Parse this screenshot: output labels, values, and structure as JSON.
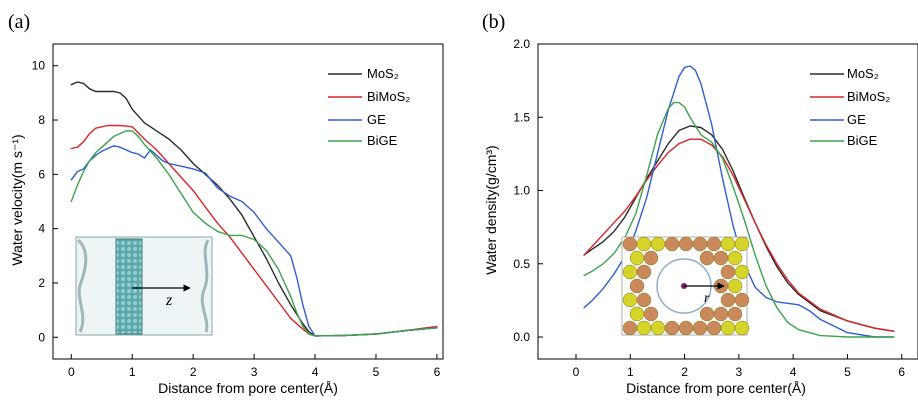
{
  "colors": {
    "MoS2": "#2b2b2b",
    "BiMoS2": "#d62728",
    "GE": "#2f5fd0",
    "BiGE": "#3ca34a"
  },
  "chart_data": [
    {
      "panel_label": "(a)",
      "type": "line",
      "xlabel": "Distance from pore center(Å)",
      "ylabel": "Water velocity(m s⁻¹)",
      "xlim": [
        -0.3,
        6.1
      ],
      "ylim": [
        -0.8,
        10.8
      ],
      "xticks": [
        0,
        1,
        2,
        3,
        4,
        5,
        6
      ],
      "yticks": [
        0,
        2,
        4,
        6,
        8,
        10
      ],
      "legend": "top-right",
      "series": [
        {
          "name": "MoS₂",
          "key": "MoS2",
          "x": [
            0.0,
            0.1,
            0.2,
            0.3,
            0.4,
            0.5,
            0.6,
            0.7,
            0.8,
            0.9,
            1.0,
            1.2,
            1.4,
            1.6,
            1.8,
            2.0,
            2.2,
            2.4,
            2.6,
            2.8,
            3.0,
            3.2,
            3.4,
            3.6,
            3.8,
            3.9,
            4.0,
            4.5,
            5.0,
            5.5,
            6.0
          ],
          "y": [
            9.3,
            9.4,
            9.35,
            9.15,
            9.05,
            9.05,
            9.05,
            9.05,
            9.0,
            8.8,
            8.4,
            7.9,
            7.6,
            7.3,
            6.9,
            6.4,
            6.0,
            5.6,
            5.1,
            4.5,
            3.7,
            2.9,
            2.0,
            1.2,
            0.5,
            0.2,
            0.05,
            0.07,
            0.12,
            0.25,
            0.35
          ]
        },
        {
          "name": "BiMoS₂",
          "key": "BiMoS2",
          "x": [
            0.0,
            0.1,
            0.2,
            0.3,
            0.4,
            0.5,
            0.6,
            0.8,
            1.0,
            1.2,
            1.4,
            1.6,
            1.8,
            2.0,
            2.2,
            2.4,
            2.6,
            2.8,
            3.0,
            3.2,
            3.4,
            3.6,
            3.8,
            3.9,
            4.0,
            4.5,
            5.0,
            5.5,
            6.0
          ],
          "y": [
            6.95,
            7.0,
            7.2,
            7.5,
            7.7,
            7.75,
            7.8,
            7.8,
            7.75,
            7.3,
            6.9,
            6.4,
            5.9,
            5.4,
            4.8,
            4.2,
            3.7,
            3.1,
            2.5,
            1.9,
            1.3,
            0.7,
            0.3,
            0.12,
            0.05,
            0.07,
            0.12,
            0.25,
            0.4
          ]
        },
        {
          "name": "GE",
          "key": "GE",
          "x": [
            0.0,
            0.1,
            0.2,
            0.3,
            0.4,
            0.5,
            0.6,
            0.7,
            0.8,
            0.9,
            1.0,
            1.1,
            1.2,
            1.3,
            1.4,
            1.5,
            1.6,
            1.8,
            2.0,
            2.2,
            2.4,
            2.6,
            2.8,
            3.0,
            3.2,
            3.4,
            3.6,
            3.7,
            3.8,
            3.9,
            4.0,
            4.5,
            5.0,
            5.5,
            6.0
          ],
          "y": [
            5.8,
            6.1,
            6.2,
            6.5,
            6.7,
            6.85,
            6.95,
            7.05,
            7.0,
            6.9,
            6.8,
            6.75,
            6.6,
            6.9,
            6.7,
            6.5,
            6.4,
            6.3,
            6.2,
            6.05,
            5.5,
            5.2,
            5.0,
            4.6,
            4.0,
            3.5,
            3.0,
            2.2,
            1.2,
            0.4,
            0.05,
            0.07,
            0.12,
            0.25,
            0.35
          ]
        },
        {
          "name": "BiGE",
          "key": "BiGE",
          "x": [
            0.0,
            0.1,
            0.2,
            0.3,
            0.4,
            0.5,
            0.6,
            0.7,
            0.8,
            0.9,
            1.0,
            1.1,
            1.2,
            1.4,
            1.6,
            1.8,
            2.0,
            2.2,
            2.4,
            2.6,
            2.8,
            3.0,
            3.2,
            3.4,
            3.5,
            3.6,
            3.7,
            3.8,
            3.9,
            4.0,
            4.5,
            5.0,
            5.5,
            6.0
          ],
          "y": [
            5.0,
            5.6,
            6.1,
            6.5,
            6.8,
            7.0,
            7.2,
            7.4,
            7.5,
            7.6,
            7.6,
            7.4,
            7.1,
            6.6,
            6.0,
            5.3,
            4.6,
            4.2,
            3.9,
            3.75,
            3.75,
            3.6,
            3.2,
            2.5,
            2.0,
            1.5,
            0.9,
            0.4,
            0.12,
            0.05,
            0.07,
            0.12,
            0.25,
            0.35
          ]
        }
      ],
      "inset": {
        "label": "z"
      }
    },
    {
      "panel_label": "(b)",
      "type": "line",
      "xlabel": "Distance from pore center(Å)",
      "ylabel": "Water density(g/cm³)",
      "xlim": [
        -0.7,
        6.3
      ],
      "ylim": [
        -0.15,
        2.0
      ],
      "xticks": [
        0,
        1,
        2,
        3,
        4,
        5,
        6
      ],
      "yticks": [
        0.0,
        0.5,
        1.0,
        1.5,
        2.0
      ],
      "ytick_labels": [
        "0.0",
        "0.5",
        "1.0",
        "1.5",
        "2.0"
      ],
      "legend": "top-right",
      "series": [
        {
          "name": "MoS₂",
          "key": "MoS2",
          "x": [
            0.15,
            0.3,
            0.5,
            0.7,
            0.9,
            1.1,
            1.3,
            1.5,
            1.7,
            1.9,
            2.1,
            2.3,
            2.5,
            2.7,
            2.9,
            3.1,
            3.3,
            3.5,
            3.7,
            3.9,
            4.1,
            4.5,
            5.0,
            5.5,
            5.85
          ],
          "y": [
            0.56,
            0.6,
            0.65,
            0.72,
            0.82,
            0.95,
            1.08,
            1.2,
            1.32,
            1.41,
            1.44,
            1.43,
            1.38,
            1.28,
            1.13,
            0.95,
            0.78,
            0.62,
            0.48,
            0.37,
            0.29,
            0.18,
            0.11,
            0.06,
            0.04
          ]
        },
        {
          "name": "BiMoS₂",
          "key": "BiMoS2",
          "x": [
            0.15,
            0.3,
            0.5,
            0.7,
            0.9,
            1.1,
            1.3,
            1.5,
            1.7,
            1.9,
            2.1,
            2.3,
            2.5,
            2.7,
            2.9,
            3.1,
            3.3,
            3.5,
            3.7,
            3.9,
            4.1,
            4.5,
            5.0,
            5.5,
            5.85
          ],
          "y": [
            0.56,
            0.62,
            0.7,
            0.78,
            0.86,
            0.96,
            1.07,
            1.17,
            1.26,
            1.32,
            1.35,
            1.35,
            1.31,
            1.23,
            1.1,
            0.94,
            0.78,
            0.63,
            0.5,
            0.39,
            0.3,
            0.19,
            0.11,
            0.06,
            0.04
          ]
        },
        {
          "name": "GE",
          "key": "GE",
          "x": [
            0.15,
            0.3,
            0.5,
            0.7,
            0.9,
            1.1,
            1.3,
            1.5,
            1.7,
            1.9,
            2.0,
            2.1,
            2.2,
            2.3,
            2.5,
            2.7,
            2.9,
            3.1,
            3.3,
            3.5,
            3.7,
            3.9,
            4.1,
            4.3,
            4.5,
            5.0,
            5.5,
            5.85
          ],
          "y": [
            0.2,
            0.25,
            0.33,
            0.43,
            0.55,
            0.72,
            0.95,
            1.25,
            1.55,
            1.78,
            1.84,
            1.85,
            1.82,
            1.73,
            1.45,
            1.08,
            0.75,
            0.5,
            0.34,
            0.27,
            0.24,
            0.23,
            0.22,
            0.18,
            0.12,
            0.03,
            0.0,
            0.0
          ]
        },
        {
          "name": "BiGE",
          "key": "BiGE",
          "x": [
            0.15,
            0.3,
            0.5,
            0.7,
            0.9,
            1.1,
            1.3,
            1.5,
            1.7,
            1.8,
            1.9,
            2.0,
            2.1,
            2.3,
            2.5,
            2.7,
            2.9,
            3.1,
            3.3,
            3.5,
            3.7,
            3.9,
            4.1,
            4.5,
            5.0,
            5.5,
            5.85
          ],
          "y": [
            0.42,
            0.45,
            0.5,
            0.57,
            0.68,
            0.84,
            1.1,
            1.38,
            1.56,
            1.6,
            1.6,
            1.57,
            1.5,
            1.38,
            1.33,
            1.22,
            1.02,
            0.8,
            0.56,
            0.35,
            0.2,
            0.1,
            0.05,
            0.01,
            0.0,
            0.0,
            0.0
          ]
        }
      ],
      "inset": {
        "label": "r"
      }
    }
  ]
}
